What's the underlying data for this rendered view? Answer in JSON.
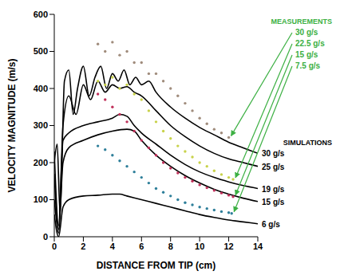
{
  "chart_data": {
    "type": "line",
    "xlabel": "DISTANCE FROM TIP (cm)",
    "ylabel": "VELOCITY MAGNITUDE (m/s)",
    "xlim": [
      0,
      14
    ],
    "xticks": [
      0,
      2,
      4,
      6,
      8,
      10,
      12,
      14
    ],
    "ylim": [
      0,
      600
    ],
    "yticks": [
      0,
      100,
      200,
      300,
      400,
      500,
      600
    ],
    "grid": false,
    "annotations": [
      {
        "text": "MEASUREMENTS",
        "color": "#3cb043"
      },
      {
        "text": "SIMULATIONS",
        "color": "#000000"
      }
    ],
    "series": [
      {
        "name": "30 g/s",
        "type": "scatter",
        "color": "#a08c7c",
        "x": [
          3,
          3.5,
          4,
          4.5,
          5,
          5.5,
          6,
          6.5,
          7,
          7.5,
          8,
          8.5,
          9,
          9.5,
          10,
          10.5,
          11,
          11.5,
          12
        ],
        "values": [
          520,
          500,
          525,
          490,
          500,
          470,
          470,
          440,
          440,
          420,
          400,
          380,
          360,
          340,
          320,
          305,
          290,
          280,
          268
        ]
      },
      {
        "name": "22.5 g/s",
        "type": "scatter",
        "color": "#c8d24a",
        "x": [
          3,
          3.5,
          4,
          4.5,
          5,
          5.5,
          6,
          6.5,
          7,
          7.5,
          8,
          8.5,
          9,
          9.5,
          10,
          10.5,
          11,
          11.5,
          12,
          12.3
        ],
        "values": [
          420,
          410,
          430,
          400,
          410,
          385,
          370,
          340,
          310,
          285,
          265,
          245,
          230,
          215,
          200,
          190,
          178,
          168,
          160,
          155
        ]
      },
      {
        "name": "15 g/s",
        "type": "scatter",
        "color": "#c0305a",
        "x": [
          3,
          3.5,
          4,
          4.5,
          5,
          5.5,
          6,
          6.5,
          7,
          7.5,
          8,
          8.5,
          9,
          9.5,
          10,
          10.5,
          11,
          11.5,
          12,
          12.3
        ],
        "values": [
          385,
          370,
          350,
          330,
          310,
          285,
          260,
          240,
          220,
          200,
          185,
          172,
          160,
          150,
          140,
          132,
          125,
          118,
          112,
          108
        ]
      },
      {
        "name": "7.5 g/s",
        "type": "scatter",
        "color": "#2e7f9a",
        "x": [
          3,
          3.5,
          4,
          4.5,
          5,
          5.5,
          6,
          6.5,
          7,
          7.5,
          8,
          8.5,
          9,
          9.5,
          10,
          10.5,
          11,
          11.5,
          12,
          12.2
        ],
        "values": [
          245,
          235,
          220,
          205,
          190,
          175,
          160,
          145,
          130,
          120,
          110,
          100,
          92,
          86,
          80,
          76,
          72,
          68,
          65,
          63
        ]
      },
      {
        "name": "30 g/s",
        "type": "line",
        "color": "#000000",
        "x": [
          0,
          0.2,
          0.4,
          0.7,
          1.0,
          1.3,
          1.6,
          2.0,
          2.4,
          2.8,
          3.2,
          3.6,
          4.0,
          4.4,
          4.8,
          5.2,
          5.6,
          6.0,
          6.5,
          7,
          8,
          9,
          10,
          11,
          12,
          13,
          14
        ],
        "values": [
          200,
          250,
          60,
          420,
          450,
          330,
          400,
          460,
          380,
          430,
          460,
          400,
          440,
          420,
          450,
          410,
          430,
          410,
          420,
          390,
          350,
          320,
          295,
          275,
          255,
          240,
          225
        ]
      },
      {
        "name": "25 g/s",
        "type": "line",
        "color": "#000000",
        "x": [
          0,
          0.3,
          0.6,
          1,
          1.5,
          2,
          2.5,
          3,
          3.5,
          4,
          4.5,
          5,
          5.5,
          6,
          7,
          8,
          9,
          10,
          11,
          12,
          13,
          14
        ],
        "values": [
          100,
          20,
          300,
          380,
          330,
          410,
          370,
          420,
          390,
          410,
          400,
          405,
          390,
          380,
          340,
          300,
          270,
          245,
          225,
          210,
          200,
          190
        ]
      },
      {
        "name": "19 g/s",
        "type": "line",
        "color": "#000000",
        "x": [
          0,
          0.3,
          0.6,
          1,
          2,
          3,
          4,
          4.5,
          5,
          5.5,
          6,
          7,
          8,
          9,
          10,
          11,
          12,
          13,
          14
        ],
        "values": [
          230,
          30,
          260,
          280,
          300,
          310,
          320,
          330,
          325,
          300,
          280,
          250,
          220,
          195,
          175,
          160,
          148,
          138,
          130
        ]
      },
      {
        "name": "15 g/s",
        "type": "line",
        "color": "#000000",
        "x": [
          0,
          0.3,
          0.6,
          1,
          2,
          3,
          4,
          5,
          5.5,
          6,
          7,
          8,
          9,
          10,
          11,
          12,
          13,
          14
        ],
        "values": [
          170,
          10,
          200,
          240,
          260,
          275,
          285,
          290,
          285,
          260,
          220,
          190,
          165,
          145,
          128,
          115,
          104,
          95
        ]
      },
      {
        "name": "6 g/s",
        "type": "line",
        "color": "#000000",
        "x": [
          0,
          0.3,
          0.6,
          1,
          2,
          3,
          4,
          4.5,
          5,
          6,
          7,
          8,
          9,
          10,
          11,
          12,
          13,
          14
        ],
        "values": [
          60,
          0,
          80,
          100,
          110,
          112,
          115,
          115,
          110,
          100,
          90,
          80,
          70,
          60,
          52,
          45,
          40,
          35
        ]
      }
    ]
  }
}
